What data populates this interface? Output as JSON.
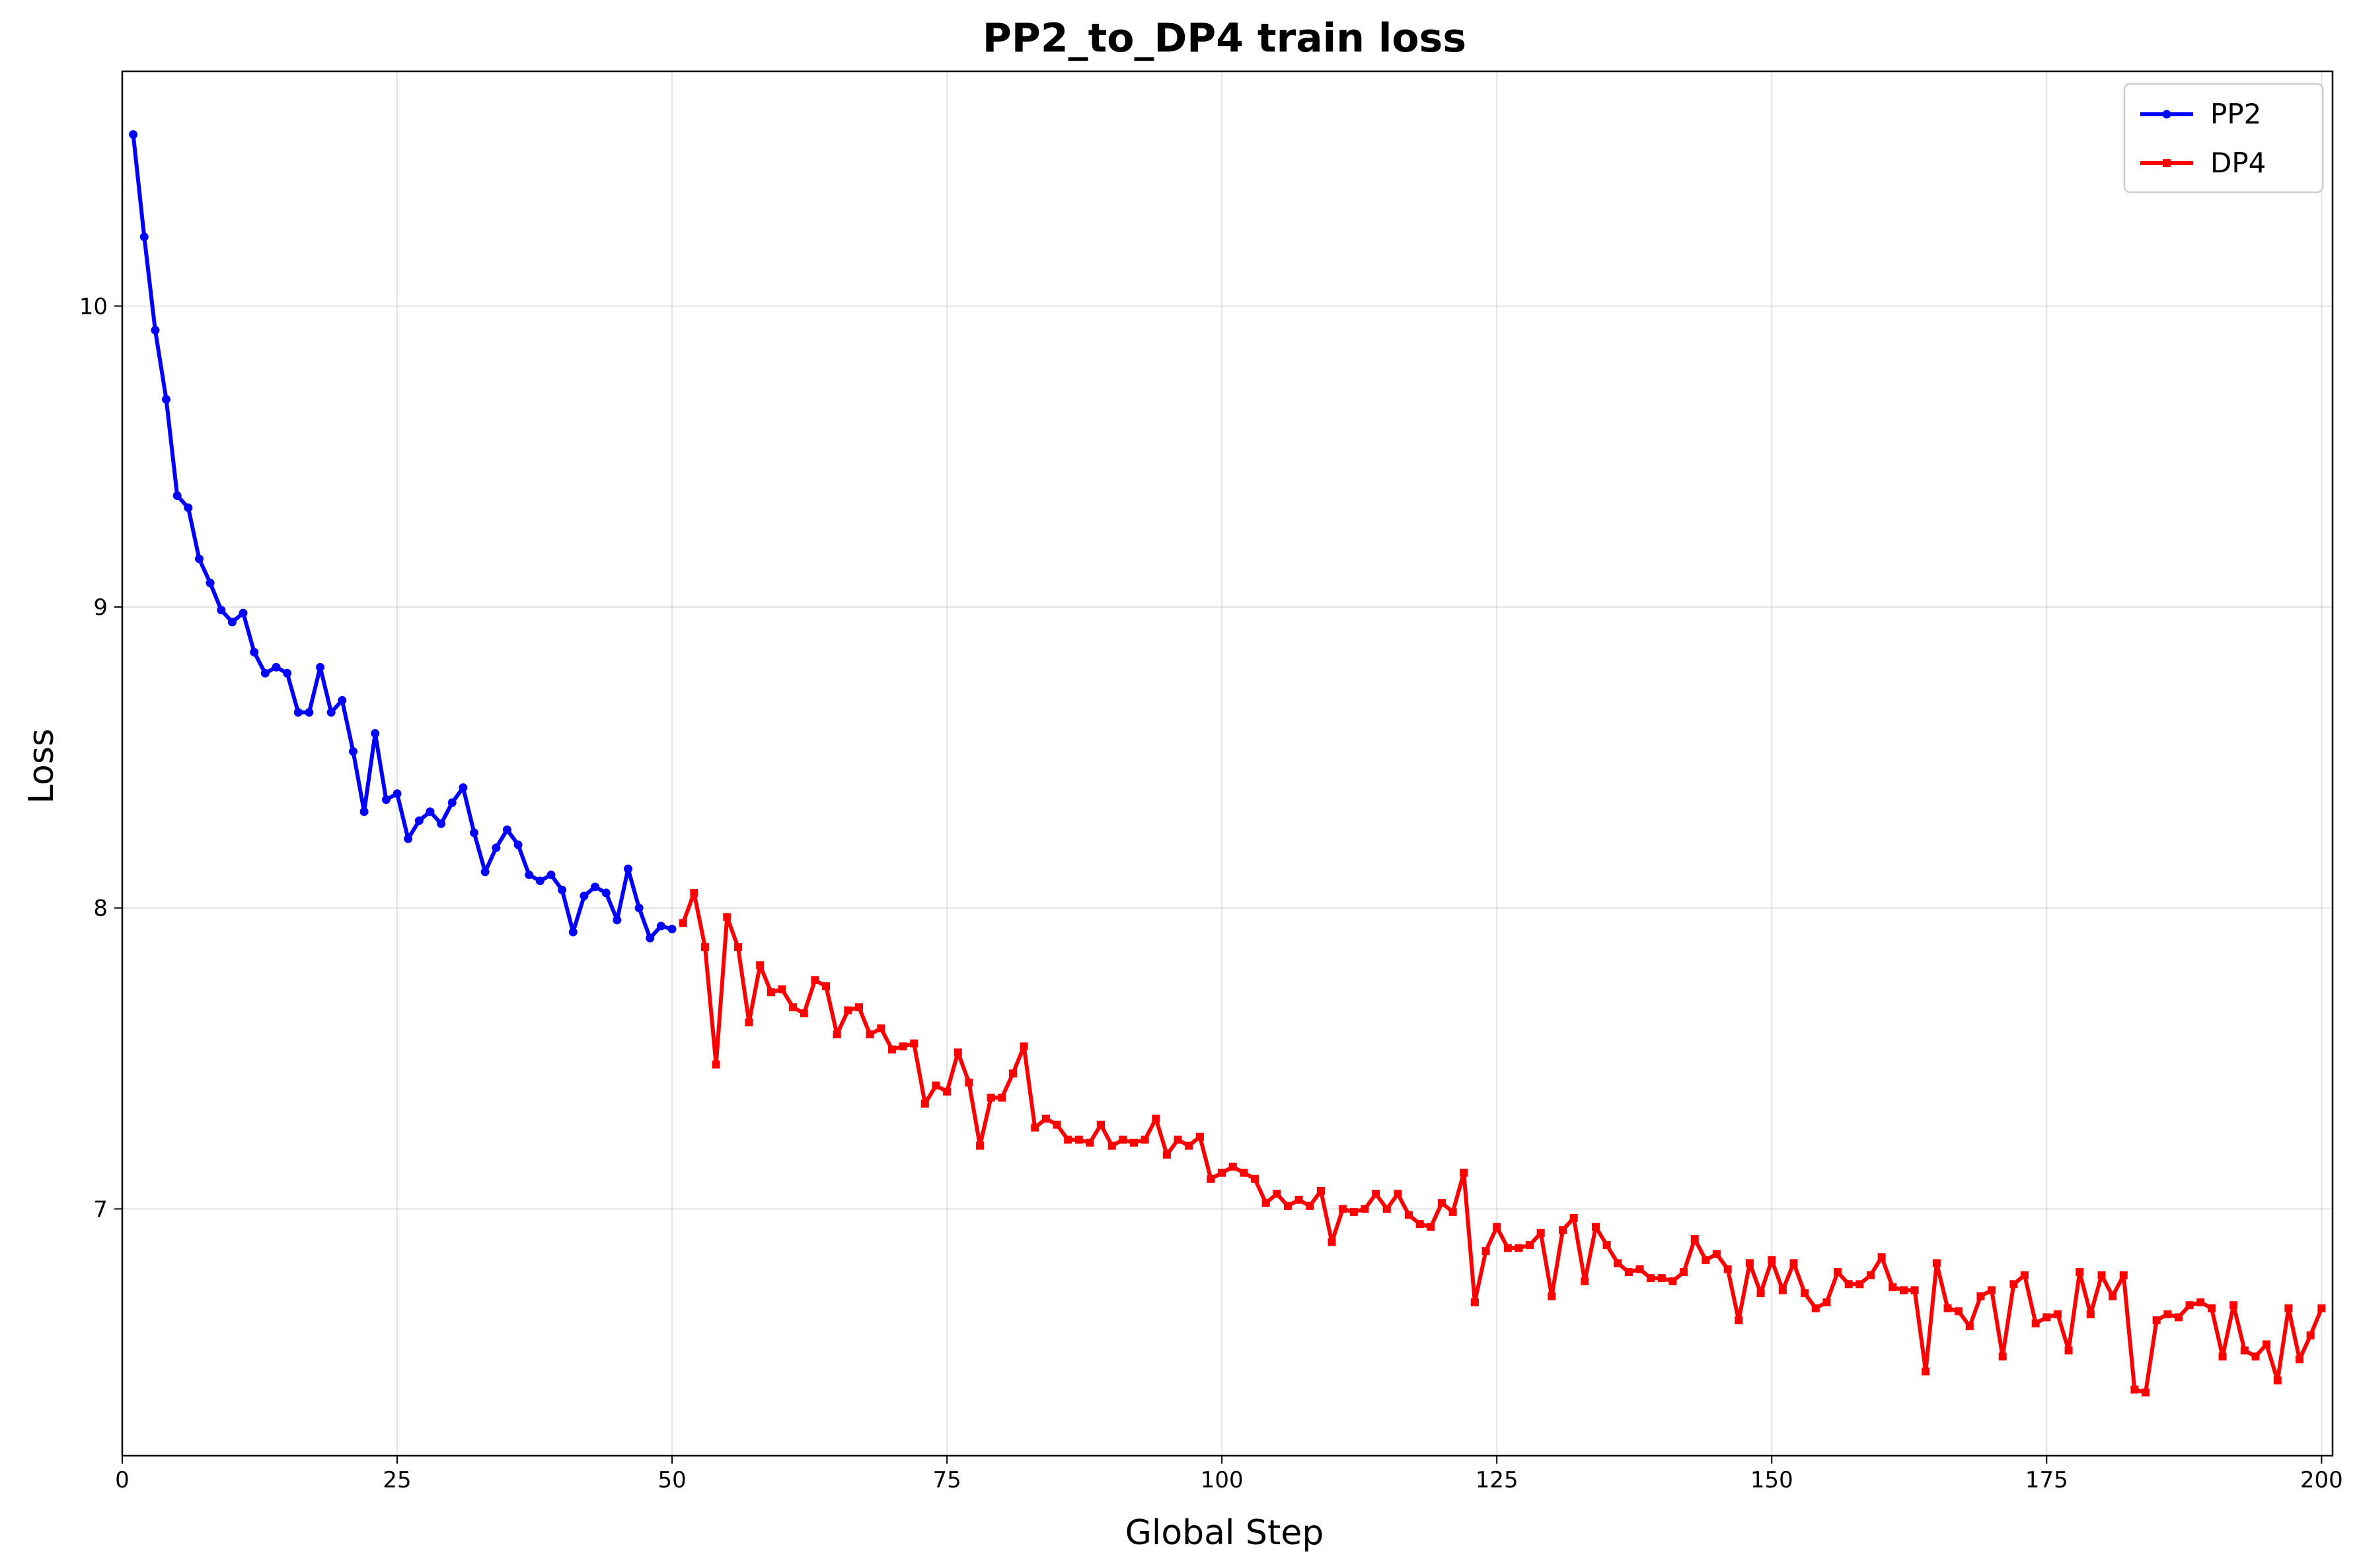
{
  "chart_data": {
    "type": "line",
    "title": "PP2_to_DP4 train loss",
    "xlabel": "Global Step",
    "ylabel": "Loss",
    "xlim": [
      0,
      201
    ],
    "ylim": [
      6.18,
      10.78
    ],
    "xticks": [
      0,
      25,
      50,
      75,
      100,
      125,
      150,
      175,
      200
    ],
    "yticks": [
      7,
      8,
      9,
      10
    ],
    "grid": true,
    "legend_position": "top-right",
    "series": [
      {
        "name": "PP2",
        "color": "#0000ff",
        "marker": "circle",
        "x": [
          1,
          2,
          3,
          4,
          5,
          6,
          7,
          8,
          9,
          10,
          11,
          12,
          13,
          14,
          15,
          16,
          17,
          18,
          19,
          20,
          21,
          22,
          23,
          24,
          25,
          26,
          27,
          28,
          29,
          30,
          31,
          32,
          33,
          34,
          35,
          36,
          37,
          38,
          39,
          40,
          41,
          42,
          43,
          44,
          45,
          46,
          47,
          48,
          49,
          50
        ],
        "y": [
          10.57,
          10.23,
          9.92,
          9.69,
          9.37,
          9.33,
          9.16,
          9.08,
          8.99,
          8.95,
          8.98,
          8.85,
          8.78,
          8.8,
          8.78,
          8.65,
          8.65,
          8.8,
          8.65,
          8.69,
          8.52,
          8.32,
          8.58,
          8.36,
          8.38,
          8.23,
          8.29,
          8.32,
          8.28,
          8.35,
          8.4,
          8.25,
          8.12,
          8.2,
          8.26,
          8.21,
          8.11,
          8.09,
          8.11,
          8.06,
          7.92,
          8.04,
          8.07,
          8.05,
          7.96,
          8.13,
          8.0,
          7.9,
          7.94,
          7.93
        ]
      },
      {
        "name": "DP4",
        "color": "#ff0000",
        "marker": "square",
        "x": [
          51,
          52,
          53,
          54,
          55,
          56,
          57,
          58,
          59,
          60,
          61,
          62,
          63,
          64,
          65,
          66,
          67,
          68,
          69,
          70,
          71,
          72,
          73,
          74,
          75,
          76,
          77,
          78,
          79,
          80,
          81,
          82,
          83,
          84,
          85,
          86,
          87,
          88,
          89,
          90,
          91,
          92,
          93,
          94,
          95,
          96,
          97,
          98,
          99,
          100,
          101,
          102,
          103,
          104,
          105,
          106,
          107,
          108,
          109,
          110,
          111,
          112,
          113,
          114,
          115,
          116,
          117,
          118,
          119,
          120,
          121,
          122,
          123,
          124,
          125,
          126,
          127,
          128,
          129,
          130,
          131,
          132,
          133,
          134,
          135,
          136,
          137,
          138,
          139,
          140,
          141,
          142,
          143,
          144,
          145,
          146,
          147,
          148,
          149,
          150,
          151,
          152,
          153,
          154,
          155,
          156,
          157,
          158,
          159,
          160,
          161,
          162,
          163,
          164,
          165,
          166,
          167,
          168,
          169,
          170,
          171,
          172,
          173,
          174,
          175,
          176,
          177,
          178,
          179,
          180,
          181,
          182,
          183,
          184,
          185,
          186,
          187,
          188,
          189,
          190,
          191,
          192,
          193,
          194,
          195,
          196,
          197,
          198,
          199,
          200
        ],
        "y": [
          7.95,
          8.05,
          7.87,
          7.48,
          7.97,
          7.87,
          7.62,
          7.81,
          7.72,
          7.73,
          7.67,
          7.65,
          7.76,
          7.74,
          7.58,
          7.66,
          7.67,
          7.58,
          7.6,
          7.53,
          7.54,
          7.55,
          7.35,
          7.41,
          7.39,
          7.52,
          7.42,
          7.21,
          7.37,
          7.37,
          7.45,
          7.54,
          7.27,
          7.3,
          7.28,
          7.23,
          7.23,
          7.22,
          7.28,
          7.21,
          7.23,
          7.22,
          7.23,
          7.3,
          7.18,
          7.23,
          7.21,
          7.24,
          7.1,
          7.12,
          7.14,
          7.12,
          7.1,
          7.02,
          7.05,
          7.01,
          7.03,
          7.01,
          7.06,
          6.89,
          7.0,
          6.99,
          7.0,
          7.05,
          7.0,
          7.05,
          6.98,
          6.95,
          6.94,
          7.02,
          6.99,
          7.12,
          6.69,
          6.86,
          6.94,
          6.87,
          6.87,
          6.88,
          6.92,
          6.71,
          6.93,
          6.97,
          6.76,
          6.94,
          6.88,
          6.82,
          6.79,
          6.8,
          6.77,
          6.77,
          6.76,
          6.79,
          6.9,
          6.83,
          6.85,
          6.8,
          6.63,
          6.82,
          6.72,
          6.83,
          6.73,
          6.82,
          6.72,
          6.67,
          6.69,
          6.79,
          6.75,
          6.75,
          6.78,
          6.84,
          6.74,
          6.73,
          6.73,
          6.46,
          6.82,
          6.67,
          6.66,
          6.61,
          6.71,
          6.73,
          6.51,
          6.75,
          6.78,
          6.62,
          6.64,
          6.65,
          6.53,
          6.79,
          6.65,
          6.78,
          6.71,
          6.78,
          6.4,
          6.39,
          6.63,
          6.65,
          6.64,
          6.68,
          6.69,
          6.67,
          6.51,
          6.68,
          6.53,
          6.51,
          6.55,
          6.43,
          6.67,
          6.5,
          6.58,
          6.67
        ]
      }
    ]
  }
}
